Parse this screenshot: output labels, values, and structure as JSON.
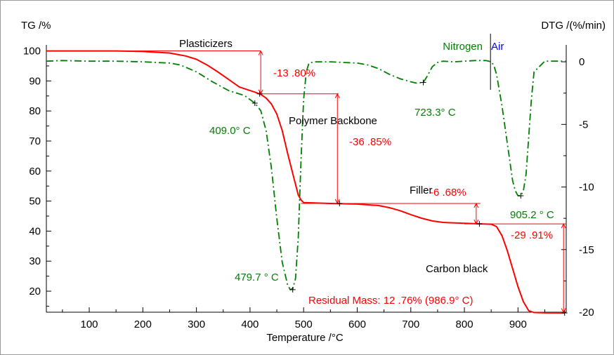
{
  "chart_data": {
    "type": "line",
    "xlabel": "Temperature /°C",
    "ylabel_left": "TG /%",
    "ylabel_right": "DTG /(%/min)",
    "xlim": [
      20,
      990
    ],
    "ylim_left": [
      13,
      102
    ],
    "ylim_right": [
      -20,
      1.35
    ],
    "x_ticks": [
      100,
      200,
      300,
      400,
      500,
      600,
      700,
      800,
      900
    ],
    "y_ticks_left": [
      20,
      30,
      40,
      50,
      60,
      70,
      80,
      90,
      100
    ],
    "y_ticks_right": [
      0,
      -5,
      -10,
      -15,
      -20
    ],
    "grid": false,
    "colors": {
      "tg": "#ff0000",
      "dtg": "#008000",
      "air": "#0000ff",
      "text": "#000000"
    },
    "atmosphere": {
      "nitrogen": "Nitrogen",
      "air": "Air",
      "switch_x": 850
    },
    "series": [
      {
        "name": "TG",
        "axis": "left",
        "style": "solid",
        "x": [
          20,
          150,
          200,
          250,
          280,
          300,
          320,
          340,
          360,
          380,
          400,
          410,
          420,
          430,
          440,
          450,
          460,
          470,
          480,
          490,
          495,
          500,
          550,
          600,
          640,
          660,
          680,
          700,
          720,
          740,
          760,
          800,
          850,
          860,
          870,
          880,
          890,
          900,
          910,
          920,
          930,
          950,
          987
        ],
        "y": [
          100,
          100,
          99.8,
          99.3,
          98.3,
          97.2,
          95.3,
          93,
          90.5,
          88,
          86.8,
          86.2,
          85.5,
          84.3,
          82.3,
          79,
          73.5,
          66,
          59,
          52,
          50.4,
          49.5,
          49.2,
          49,
          48.5,
          47.8,
          46.8,
          45.5,
          44.3,
          43.4,
          42.9,
          42.6,
          42.3,
          41.5,
          38.5,
          33.5,
          27.5,
          21.5,
          16.5,
          13.5,
          12.9,
          12.8,
          12.76
        ]
      },
      {
        "name": "DTG",
        "axis": "right",
        "style": "dashdot",
        "x": [
          20,
          50,
          100,
          150,
          200,
          250,
          270,
          300,
          330,
          360,
          390,
          409,
          420,
          430,
          440,
          450,
          460,
          470,
          475,
          480,
          485,
          490,
          495,
          500,
          505,
          510,
          520,
          550,
          600,
          620,
          640,
          660,
          680,
          700,
          710,
          723.3,
          730,
          740,
          750,
          760,
          780,
          800,
          820,
          840,
          850,
          855,
          860,
          870,
          880,
          890,
          895,
          900,
          905.2,
          910,
          915,
          920,
          925,
          930,
          950,
          990
        ],
        "y": [
          0.05,
          0.1,
          0.05,
          0.05,
          0,
          -0.1,
          -0.25,
          -0.8,
          -1.6,
          -2.3,
          -2.7,
          -3.3,
          -3.9,
          -5.5,
          -8.5,
          -12.5,
          -16,
          -17.8,
          -18.2,
          -18.1,
          -17.3,
          -14,
          -8,
          -3,
          -0.8,
          -0.1,
          0,
          0,
          -0.1,
          -0.25,
          -0.55,
          -1,
          -1.35,
          -1.6,
          -1.7,
          -1.65,
          -1.2,
          -0.4,
          -0.05,
          0.05,
          0,
          0.05,
          0.1,
          0.1,
          0,
          -0.3,
          -1,
          -3.5,
          -6.5,
          -9.5,
          -10.3,
          -10.7,
          -10.7,
          -10.3,
          -9,
          -6,
          -3,
          -0.8,
          0.05,
          0.05
        ]
      }
    ],
    "markers": {
      "tg": [
        [
          418,
          85.7
        ],
        [
          567,
          49.2
        ],
        [
          828,
          42.4
        ],
        [
          987,
          12.76
        ]
      ],
      "dtg": [
        [
          409,
          -3.3
        ],
        [
          479.7,
          -18.2
        ],
        [
          723.3,
          -1.65
        ],
        [
          905.2,
          -10.7
        ]
      ]
    },
    "annotations": {
      "plasticizers": "Plasticizers",
      "polymer_backbone": "Polymer Backbone",
      "filler": "Filler",
      "carbon_black": "Carbon black",
      "loss_plasticizers": "-13 .80%",
      "loss_polymer": "-36 .85%",
      "loss_filler": "-6 .68%",
      "loss_carbon": "-29 .91%",
      "residual": "Residual Mass: 12 .76% (986.9° C)",
      "peak_409": "409.0° C",
      "peak_479": "479.7 ° C",
      "peak_723": "723.3° C",
      "peak_905": "905.2 ° C"
    }
  }
}
